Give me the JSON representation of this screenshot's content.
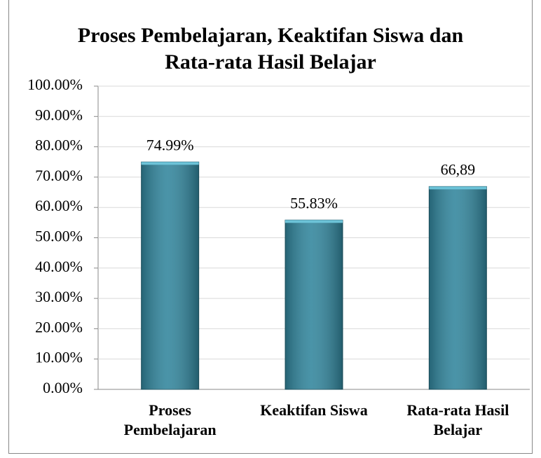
{
  "chart_data": {
    "type": "bar",
    "title": "Proses Pembelajaran, Keaktifan Siswa dan Rata-rata Hasil Belajar",
    "categories": [
      "Proses Pembelajaran",
      "Keaktifan Siswa",
      "Rata-rata Hasil Belajar"
    ],
    "values": [
      74.99,
      55.83,
      66.89
    ],
    "value_labels": [
      "74.99%",
      "55.83%",
      "66,89"
    ],
    "color": "#31859c",
    "ylim": [
      0,
      100
    ],
    "yticks": [
      {
        "value": 0,
        "label": "0.00%"
      },
      {
        "value": 10,
        "label": "10.00%"
      },
      {
        "value": 20,
        "label": "20.00%"
      },
      {
        "value": 30,
        "label": "30.00%"
      },
      {
        "value": 40,
        "label": "40.00%"
      },
      {
        "value": 50,
        "label": "50.00%"
      },
      {
        "value": 60,
        "label": "60.00%"
      },
      {
        "value": 70,
        "label": "70.00%"
      },
      {
        "value": 80,
        "label": "80.00%"
      },
      {
        "value": 90,
        "label": "90.00%"
      },
      {
        "value": 100,
        "label": "100.00%"
      }
    ],
    "grid": true
  }
}
